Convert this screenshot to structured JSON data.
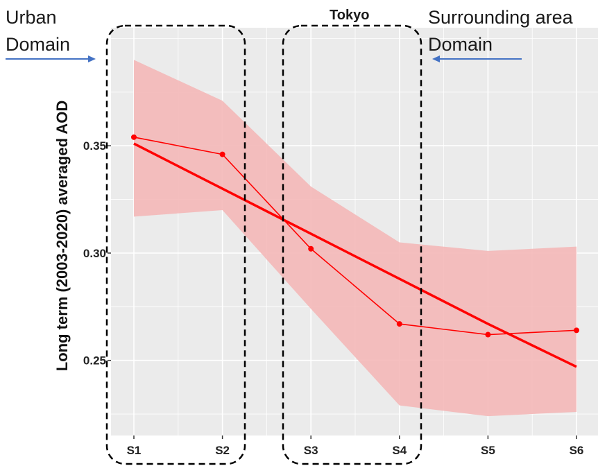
{
  "chart_data": {
    "type": "line",
    "xlabel": "",
    "ylabel": "Long term (2003-2020) averaged AOD",
    "categories": [
      "S1",
      "S2",
      "S3",
      "S4",
      "S5",
      "S6"
    ],
    "ylim": [
      0.215,
      0.405
    ],
    "yticks": [
      0.25,
      0.3,
      0.35
    ],
    "ytick_labels": [
      "0.25",
      "0.30",
      "0.35"
    ],
    "grid": true,
    "legend": "none",
    "series": [
      {
        "kind": "observed",
        "values": [
          0.354,
          0.346,
          0.302,
          0.267,
          0.262,
          0.264
        ]
      },
      {
        "kind": "linear_fit",
        "values": [
          0.351,
          0.33,
          0.309,
          0.288,
          0.267,
          0.247
        ]
      }
    ],
    "band": {
      "upper": [
        0.39,
        0.371,
        0.331,
        0.305,
        0.301,
        0.303
      ],
      "lower": [
        0.317,
        0.32,
        0.274,
        0.229,
        0.224,
        0.226
      ]
    },
    "colors": {
      "line": "#ff0000",
      "band": "#f4b8b8",
      "panel": "#ebebeb",
      "grid": "#ffffff",
      "arrow": "#4472c4",
      "box": "#000000"
    },
    "annotations": {
      "urban_line1": "Urban",
      "urban_line2": "Domain",
      "tokyo": "Tokyo",
      "surround_line1": "Surrounding area",
      "surround_line2": "Domain"
    }
  }
}
